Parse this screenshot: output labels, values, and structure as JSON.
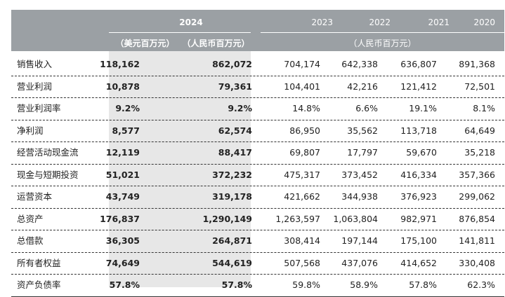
{
  "header": {
    "year_current": "2024",
    "years_prior": [
      "2023",
      "2022",
      "2021",
      "2020"
    ],
    "unit_usd": "（美元百万元）",
    "unit_rmb": "（人民币百万元）",
    "unit_prior": "（人民币百万元）"
  },
  "rows": [
    {
      "label": "销售收入",
      "values": [
        "118,162",
        "862,072",
        "704,174",
        "642,338",
        "636,807",
        "891,368"
      ]
    },
    {
      "label": "营业利润",
      "values": [
        "10,878",
        "79,361",
        "104,401",
        "42,216",
        "121,412",
        "72,501"
      ]
    },
    {
      "label": "营业利润率",
      "values": [
        "9.2%",
        "9.2%",
        "14.8%",
        "6.6%",
        "19.1%",
        "8.1%"
      ]
    },
    {
      "label": "净利润",
      "values": [
        "8,577",
        "62,574",
        "86,950",
        "35,562",
        "113,718",
        "64,649"
      ]
    },
    {
      "label": "经营活动现金流",
      "values": [
        "12,119",
        "88,417",
        "69,807",
        "17,797",
        "59,670",
        "35,218"
      ]
    },
    {
      "label": "现金与短期投资",
      "values": [
        "51,021",
        "372,232",
        "475,317",
        "373,452",
        "416,334",
        "357,366"
      ]
    },
    {
      "label": "运营资本",
      "values": [
        "43,749",
        "319,178",
        "421,662",
        "344,938",
        "376,923",
        "299,062"
      ]
    },
    {
      "label": "总资产",
      "values": [
        "176,837",
        "1,290,149",
        "1,263,597",
        "1,063,804",
        "982,971",
        "876,854"
      ]
    },
    {
      "label": "总借款",
      "values": [
        "36,305",
        "264,871",
        "308,414",
        "197,144",
        "175,100",
        "141,811"
      ]
    },
    {
      "label": "所有者权益",
      "values": [
        "74,649",
        "544,619",
        "507,568",
        "437,076",
        "414,652",
        "330,408"
      ]
    },
    {
      "label": "资产负债率",
      "values": [
        "57.8%",
        "57.8%",
        "59.8%",
        "58.9%",
        "57.8%",
        "62.3%"
      ]
    }
  ]
}
